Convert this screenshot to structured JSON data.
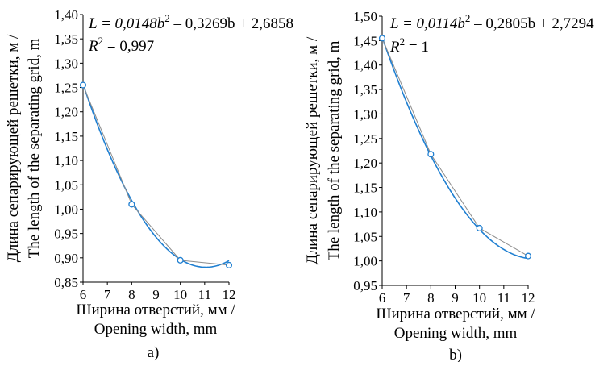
{
  "colors": {
    "fit": "#1f7fd1",
    "data_line": "#8c8c8c",
    "marker": "#1f7fd1",
    "axis": "#000000"
  },
  "chart_data": [
    {
      "type": "line",
      "panel_label": "a)",
      "equation": {
        "prefix": "L = 0,0148b",
        "sup": "2",
        "suffix": " – 0,3269b + 2,6858"
      },
      "r2": {
        "prefix": "R",
        "sup": "2",
        "suffix": " = 0,997"
      },
      "ylabel_lines": [
        "Длина сепарирующей решетки, м /",
        "The length of the separating grid, m"
      ],
      "xlabel_lines": [
        "Ширина отверстий, мм /",
        "Opening width, mm"
      ],
      "xlim": [
        6,
        12
      ],
      "ylim": [
        0.85,
        1.4
      ],
      "x_ticks": [
        6,
        7,
        8,
        9,
        10,
        11,
        12
      ],
      "y_ticks": [
        0.85,
        0.9,
        0.95,
        1.0,
        1.05,
        1.1,
        1.15,
        1.2,
        1.25,
        1.3,
        1.35,
        1.4
      ],
      "x_tick_labels": [
        "6",
        "7",
        "8",
        "9",
        "10",
        "11",
        "12"
      ],
      "y_tick_labels": [
        "0,85",
        "0,90",
        "0,95",
        "1,00",
        "1,05",
        "1,10",
        "1,15",
        "1,20",
        "1,25",
        "1,30",
        "1,35",
        "1,40"
      ],
      "series": [
        {
          "x": [
            6,
            8,
            10,
            12
          ],
          "y": [
            1.255,
            1.01,
            0.895,
            0.885
          ]
        }
      ],
      "fit": {
        "a": 0.0148,
        "b": -0.3269,
        "c": 2.6858
      }
    },
    {
      "type": "line",
      "panel_label": "b)",
      "equation": {
        "prefix": "L = 0,0114b",
        "sup": "2",
        "suffix": " – 0,2805b + 2,7294"
      },
      "r2": {
        "prefix": "R",
        "sup": "2",
        "suffix": " = 1"
      },
      "ylabel_lines": [
        "Длина сепарирующей решетки, м /",
        "The length of the separating grid, m"
      ],
      "xlabel_lines": [
        "Ширина отверстий, мм /",
        "Opening width, mm"
      ],
      "xlim": [
        6,
        12
      ],
      "ylim": [
        0.95,
        1.5
      ],
      "x_ticks": [
        6,
        7,
        8,
        9,
        10,
        11,
        12
      ],
      "y_ticks": [
        0.95,
        1.0,
        1.05,
        1.1,
        1.15,
        1.2,
        1.25,
        1.3,
        1.35,
        1.4,
        1.45,
        1.5
      ],
      "x_tick_labels": [
        "6",
        "7",
        "8",
        "9",
        "10",
        "11",
        "12"
      ],
      "y_tick_labels": [
        "0,95",
        "1,00",
        "1,05",
        "1,10",
        "1,15",
        "1,20",
        "1,25",
        "1,30",
        "1,35",
        "1,40",
        "1,45",
        "1,50"
      ],
      "series": [
        {
          "x": [
            6,
            8,
            10,
            12
          ],
          "y": [
            1.455,
            1.218,
            1.067,
            1.01
          ]
        }
      ],
      "fit": {
        "a": 0.0114,
        "b": -0.2805,
        "c": 2.7294
      }
    }
  ]
}
